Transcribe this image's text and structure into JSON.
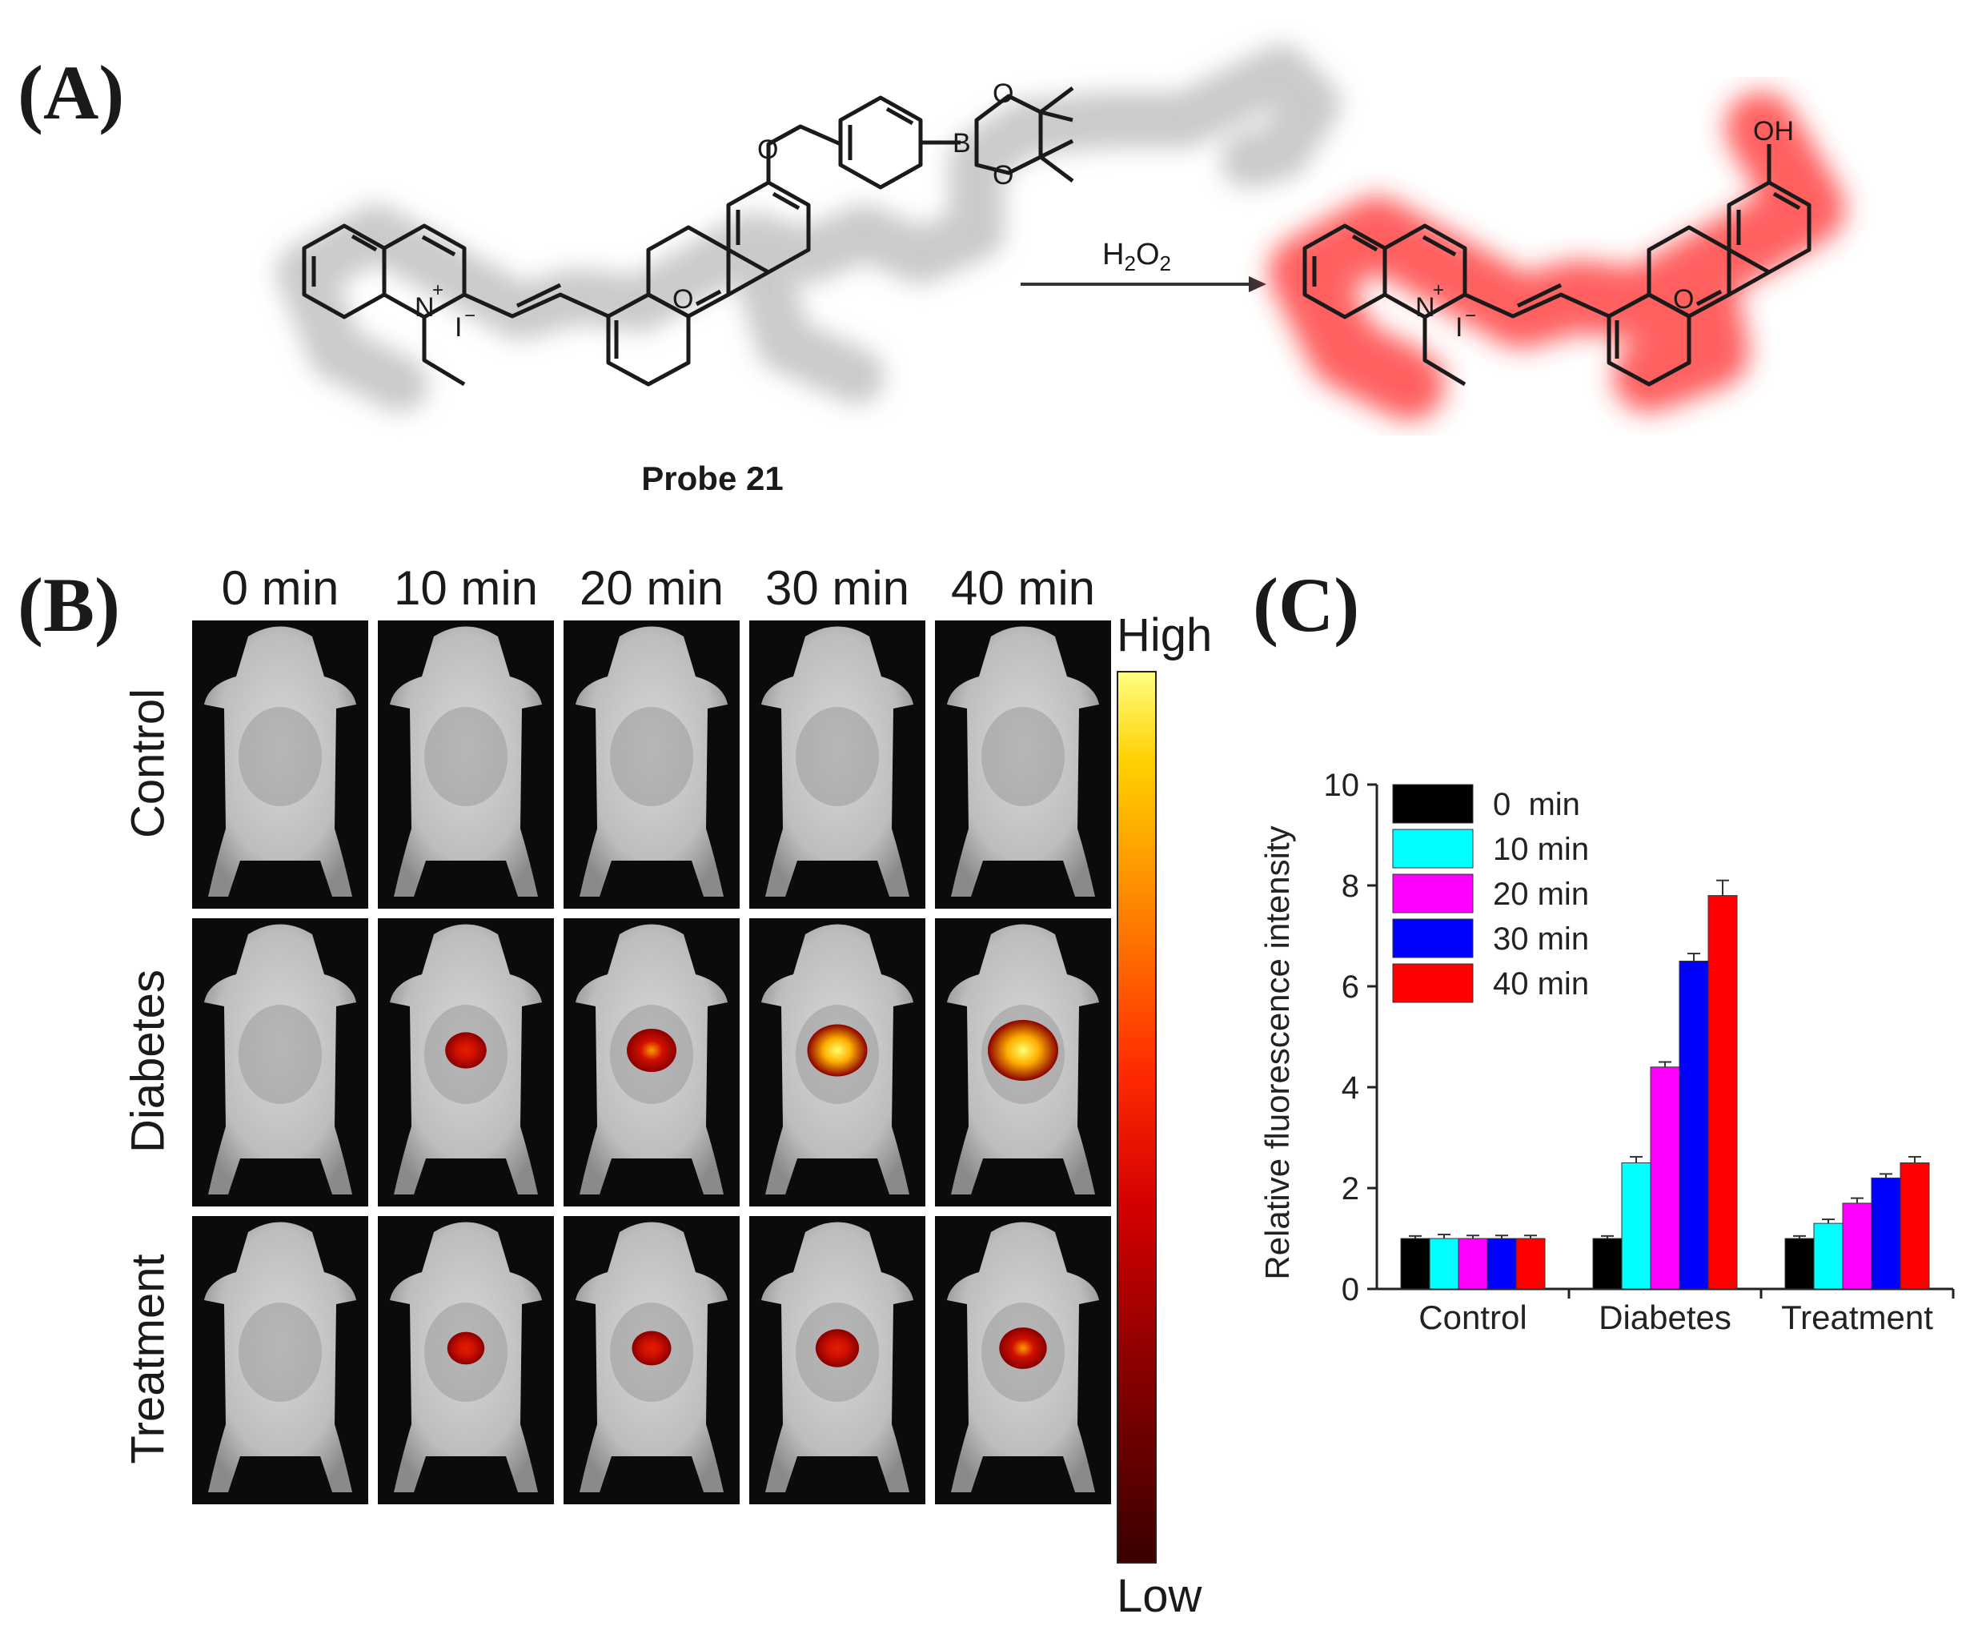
{
  "panels": {
    "a": "(A)",
    "b": "(B)",
    "c": "(C)"
  },
  "scheme": {
    "reagent": "H2O2",
    "reactant_name": "Probe 21",
    "atoms": {
      "o": "O",
      "b": "B",
      "n": "N",
      "charge": "+",
      "iodide": "I",
      "minus": "−",
      "oh": "OH"
    },
    "glow_color_reactant": "#b0b0b0",
    "glow_color_product": "#ff3030"
  },
  "imaging": {
    "time_labels": [
      "0 min",
      "10 min",
      "20 min",
      "30 min",
      "40 min"
    ],
    "row_labels": [
      "Control",
      "Diabetes",
      "Treatment"
    ],
    "colorbar": {
      "high": "High",
      "low": "Low"
    },
    "signal_levels": {
      "Control": [
        0,
        0,
        0,
        0,
        0
      ],
      "Diabetes": [
        0,
        0.3,
        0.5,
        0.75,
        1.0
      ],
      "Treatment": [
        0,
        0.2,
        0.25,
        0.35,
        0.45
      ]
    }
  },
  "chart_data": {
    "type": "bar",
    "ylabel": "Relative fluorescence intensity",
    "ylim": [
      0,
      10
    ],
    "yticks": [
      0,
      2,
      4,
      6,
      8,
      10
    ],
    "categories": [
      "Control",
      "Diabetes",
      "Treatment"
    ],
    "legend_position": "top-left",
    "series": [
      {
        "name": "0  min",
        "color": "#000000",
        "values": [
          1.0,
          1.0,
          1.0
        ],
        "errors": [
          0.05,
          0.05,
          0.05
        ]
      },
      {
        "name": "10 min",
        "color": "#00ffff",
        "values": [
          1.0,
          2.5,
          1.3
        ],
        "errors": [
          0.08,
          0.12,
          0.08
        ]
      },
      {
        "name": "20 min",
        "color": "#ff00ff",
        "values": [
          1.0,
          4.4,
          1.7
        ],
        "errors": [
          0.06,
          0.1,
          0.1
        ]
      },
      {
        "name": "30 min",
        "color": "#0000ff",
        "values": [
          1.0,
          6.5,
          2.2
        ],
        "errors": [
          0.06,
          0.15,
          0.08
        ]
      },
      {
        "name": "40 min",
        "color": "#ff0000",
        "values": [
          1.0,
          7.8,
          2.5
        ],
        "errors": [
          0.06,
          0.3,
          0.12
        ]
      }
    ]
  }
}
